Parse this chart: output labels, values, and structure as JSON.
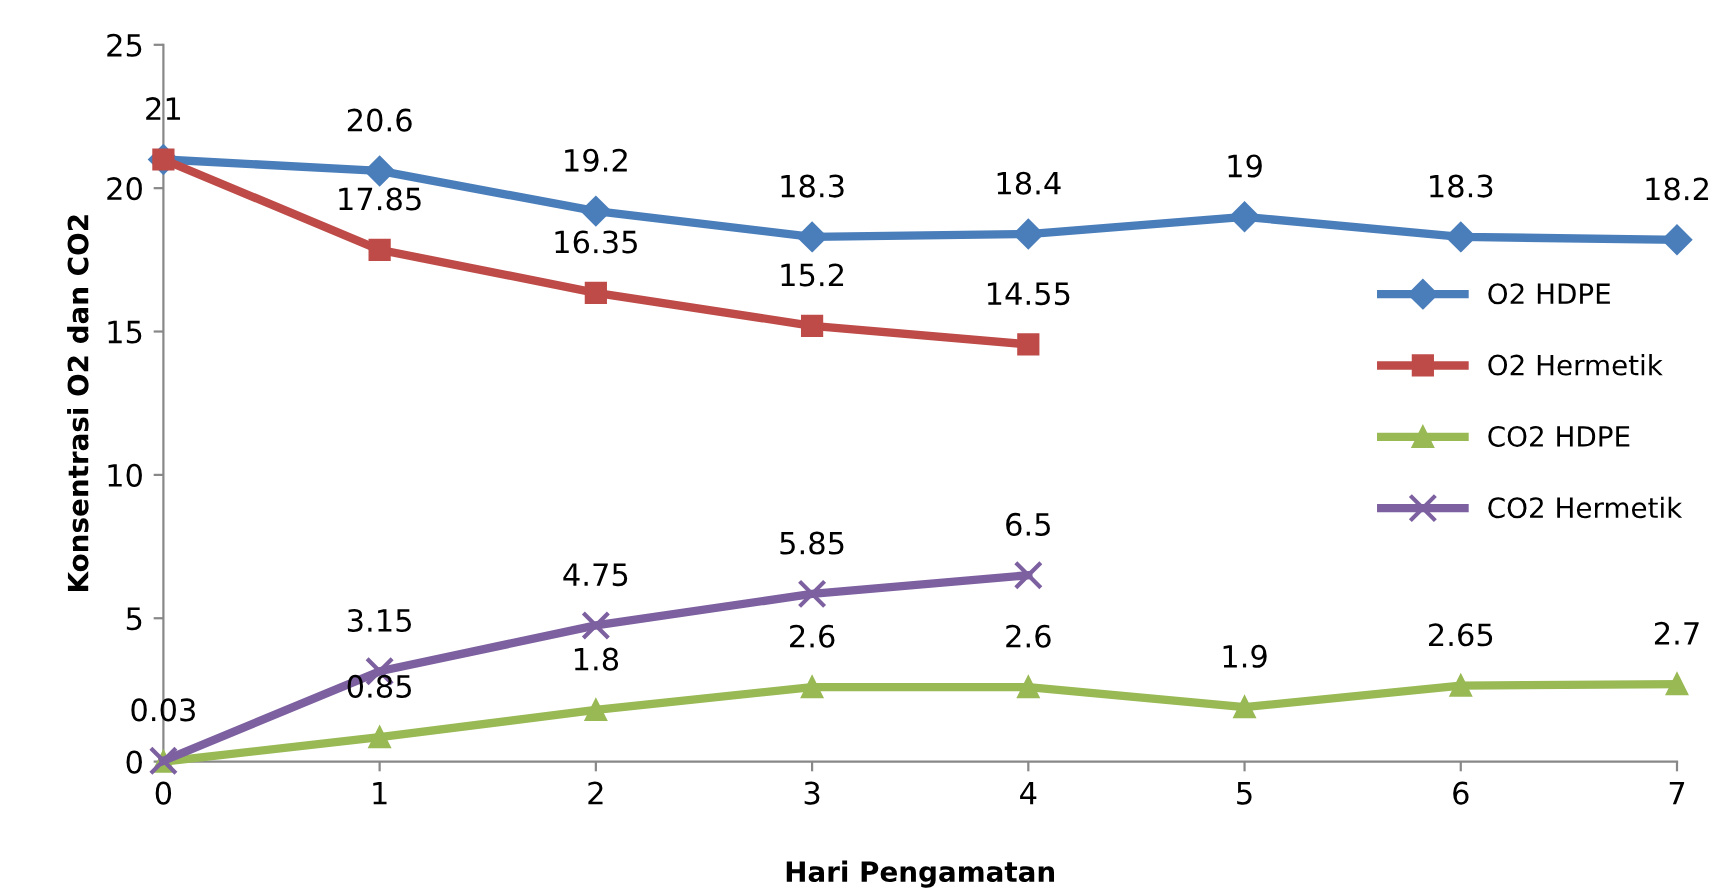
{
  "chart_data": {
    "type": "line",
    "xlabel": "Hari Pengamatan",
    "ylabel": "Konsentrasi O2 dan CO2",
    "xlim": [
      0,
      7
    ],
    "xticks": [
      0,
      1,
      2,
      3,
      4,
      5,
      6,
      7
    ],
    "ylim": [
      0,
      25
    ],
    "yticks": [
      0,
      5,
      10,
      15,
      20,
      25
    ],
    "grid": false,
    "legend": "right",
    "series": [
      {
        "name": "O2 HDPE",
        "color": "#4a7ebb",
        "marker": "diamond",
        "x": [
          0,
          1,
          2,
          3,
          4,
          5,
          6,
          7
        ],
        "values": [
          21,
          20.6,
          19.2,
          18.3,
          18.4,
          19,
          18.3,
          18.2
        ],
        "value_labels": [
          "21",
          "20.6",
          "19.2",
          "18.3",
          "18.4",
          "19",
          "18.3",
          "18.2"
        ]
      },
      {
        "name": "O2 Hermetik",
        "color": "#be4b48",
        "marker": "square",
        "x": [
          0,
          1,
          2,
          3,
          4
        ],
        "values": [
          21,
          17.85,
          16.35,
          15.2,
          14.55
        ],
        "value_labels": [
          null,
          "17.85",
          "16.35",
          "15.2",
          "14.55"
        ]
      },
      {
        "name": "CO2 HDPE",
        "color": "#98b954",
        "marker": "triangle",
        "x": [
          0,
          1,
          2,
          3,
          4,
          5,
          6,
          7
        ],
        "values": [
          0,
          0.85,
          1.8,
          2.6,
          2.6,
          1.9,
          2.65,
          2.7
        ],
        "value_labels": [
          null,
          "0.85",
          "1.8",
          "2.6",
          "2.6",
          "1.9",
          "2.65",
          "2.7"
        ]
      },
      {
        "name": "CO2 Hermetik",
        "color": "#7d60a0",
        "marker": "cross",
        "x": [
          0,
          1,
          2,
          3,
          4
        ],
        "values": [
          0.03,
          3.15,
          4.75,
          5.85,
          6.5
        ],
        "value_labels": [
          "0.03",
          "3.15",
          "4.75",
          "5.85",
          "6.5"
        ]
      }
    ]
  }
}
